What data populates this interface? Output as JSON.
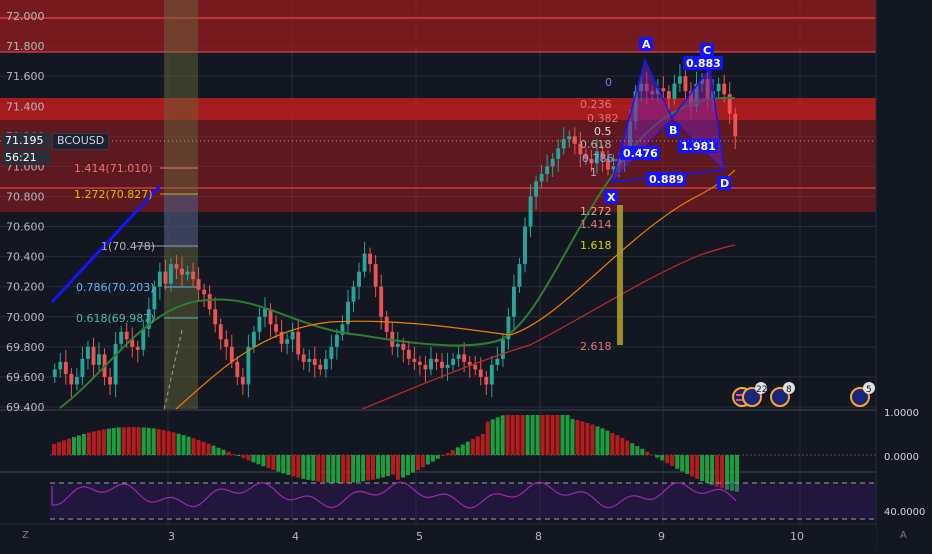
{
  "chart": {
    "symbol": "BCOUSD",
    "last_price": "71.195",
    "countdown": "56:21",
    "scale_auto": "A",
    "scale_z": "Z"
  },
  "price_axis_ticks": [
    "72.000",
    "71.800",
    "71.600",
    "71.400",
    "71.200",
    "71.000",
    "70.800",
    "70.600",
    "70.400",
    "70.200",
    "70.000",
    "69.800",
    "69.600",
    "69.400"
  ],
  "date_ticks": [
    "3",
    "4",
    "5",
    "8",
    "9",
    "10"
  ],
  "indicator_axis": {
    "macd": [
      "1.0000",
      "0.0000"
    ],
    "rsi": [
      "40.0000"
    ]
  },
  "fib_left_labels": [
    "1.414(71.010)",
    "1.272(70.827)",
    "1(70.478)",
    "0.786(70.203)",
    "0.618(69.987)"
  ],
  "fib_right_labels": [
    "0",
    "0.236",
    "0.382",
    "0.5",
    "0.618",
    "0.786",
    "1",
    "1.272",
    "1.414",
    "1.618",
    "2.618"
  ],
  "pattern": {
    "points": [
      "X",
      "A",
      "B",
      "C",
      "D"
    ],
    "ratios": [
      "0.883",
      "0.476",
      "1.981",
      "0.889"
    ]
  },
  "event_badges": [
    "22",
    "8",
    "5"
  ],
  "colors": {
    "background": "#131722",
    "bull": "#26a69a",
    "bear": "#ef5350",
    "zone_red": "#b71c1c",
    "pattern_blue": "#1414ff",
    "ma_green": "#2e7d32",
    "ma_orange": "#f57c00",
    "ma_red": "#c62828",
    "rsi": "#9c27b0"
  },
  "chart_data": {
    "type": "candlestick",
    "ylim": [
      69.38,
      72.08
    ],
    "x_tick_labels": [
      "3",
      "4",
      "5",
      "8",
      "9",
      "10"
    ],
    "closes": [
      69.65,
      69.7,
      69.62,
      69.55,
      69.6,
      69.72,
      69.8,
      69.68,
      69.75,
      69.6,
      69.55,
      69.82,
      69.9,
      69.85,
      69.8,
      69.78,
      69.92,
      70.05,
      70.2,
      70.3,
      70.22,
      70.35,
      70.32,
      70.28,
      70.3,
      70.25,
      70.18,
      70.15,
      70.05,
      69.95,
      69.85,
      69.8,
      69.7,
      69.6,
      69.55,
      69.8,
      69.9,
      70.0,
      70.05,
      69.95,
      69.9,
      69.82,
      69.85,
      69.9,
      69.75,
      69.7,
      69.72,
      69.68,
      69.65,
      69.72,
      69.8,
      69.88,
      69.95,
      70.1,
      70.2,
      70.3,
      70.42,
      70.35,
      70.2,
      70.0,
      69.9,
      69.8,
      69.82,
      69.78,
      69.72,
      69.7,
      69.68,
      69.65,
      69.72,
      69.7,
      69.66,
      69.68,
      69.72,
      69.75,
      69.7,
      69.68,
      69.65,
      69.6,
      69.55,
      69.68,
      69.72,
      69.85,
      70.0,
      70.2,
      70.35,
      70.6,
      70.8,
      70.9,
      70.95,
      71.0,
      71.05,
      71.12,
      71.18,
      71.2,
      71.15,
      71.08,
      71.05,
      71.02,
      71.1,
      71.05,
      70.98,
      71.0,
      71.05,
      71.08,
      71.3,
      71.5,
      71.55,
      71.5,
      71.48,
      71.52,
      71.5,
      71.45,
      71.55,
      71.6,
      71.5,
      71.4,
      71.55,
      71.58,
      71.45,
      71.5,
      71.55,
      71.48,
      71.35,
      71.2
    ],
    "rsi_value_approx": 45
  }
}
